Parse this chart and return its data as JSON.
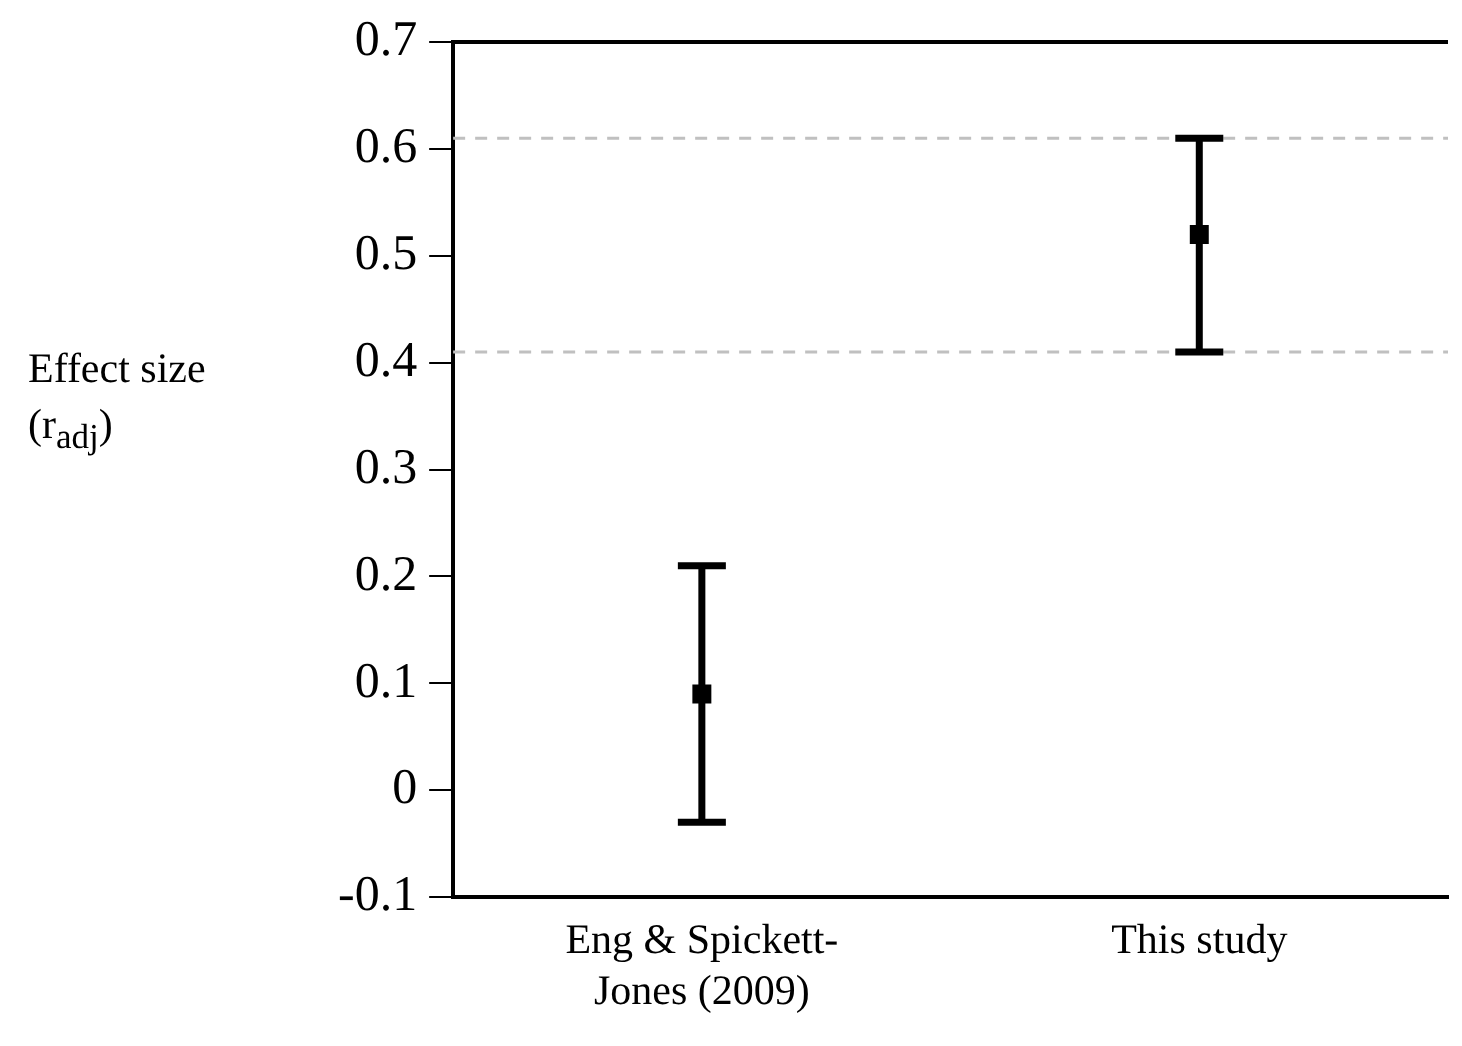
{
  "chart_data": {
    "type": "scatter",
    "ylabel": "Effect size (r$_{adj}$)",
    "categories": [
      "Eng & Spickett-Jones (2009)",
      "This study"
    ],
    "series": [
      {
        "color": "#000000",
        "values": [
          0.09,
          0.52
        ],
        "errors": [
          [
            -0.03,
            0.21
          ],
          [
            0.41,
            0.61
          ]
        ]
      }
    ],
    "marker": "square",
    "ylim": [
      -0.1,
      0.7
    ],
    "yticks": [
      -0.1,
      0,
      0.1,
      0.2,
      0.3,
      0.4,
      0.5,
      0.6,
      0.7
    ],
    "grid": false,
    "legend": false,
    "ref_lines": [
      {
        "axis": "y",
        "value": 0.61,
        "color": "#c0c0c0",
        "line_style": "dashed"
      },
      {
        "axis": "y",
        "value": 0.41,
        "color": "#c0c0c0",
        "line_style": "dashed"
      }
    ]
  }
}
